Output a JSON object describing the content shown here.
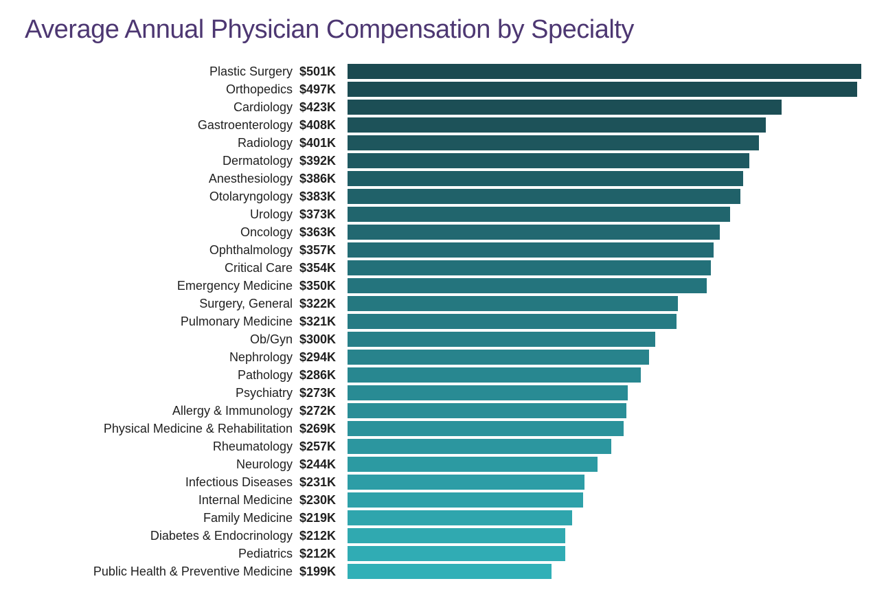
{
  "title": "Average Annual Physician Compensation by Specialty",
  "title_color": "#4d3772",
  "label_color": "#1f1f1f",
  "value_color": "#1f1f1f",
  "background_color": "#ffffff",
  "max_value": 501,
  "label_fontsize": 18,
  "value_fontsize": 18,
  "title_fontsize": 38,
  "rows": [
    {
      "label": "Plastic Surgery",
      "value": 501,
      "display": "$501K",
      "bar_color": "#1b4950"
    },
    {
      "label": "Orthopedics",
      "value": 497,
      "display": "$497K",
      "bar_color": "#1b4b52"
    },
    {
      "label": "Cardiology",
      "value": 423,
      "display": "$423K",
      "bar_color": "#1c4e55"
    },
    {
      "label": "Gastroenterology",
      "value": 408,
      "display": "$408K",
      "bar_color": "#1d5259"
    },
    {
      "label": "Radiology",
      "value": 401,
      "display": "$401K",
      "bar_color": "#1e565d"
    },
    {
      "label": "Dermatology",
      "value": 392,
      "display": "$392K",
      "bar_color": "#1f5961"
    },
    {
      "label": "Anesthesiology",
      "value": 386,
      "display": "$386K",
      "bar_color": "#1f5d65"
    },
    {
      "label": "Otolaryngology",
      "value": 383,
      "display": "$383K",
      "bar_color": "#206169"
    },
    {
      "label": "Urology",
      "value": 373,
      "display": "$373K",
      "bar_color": "#21656d"
    },
    {
      "label": "Oncology",
      "value": 363,
      "display": "$363K",
      "bar_color": "#226871"
    },
    {
      "label": "Ophthalmology",
      "value": 357,
      "display": "$357K",
      "bar_color": "#236c75"
    },
    {
      "label": "Critical Care",
      "value": 354,
      "display": "$354K",
      "bar_color": "#237079"
    },
    {
      "label": "Emergency Medicine",
      "value": 350,
      "display": "$350K",
      "bar_color": "#24747d"
    },
    {
      "label": "Surgery, General",
      "value": 322,
      "display": "$322K",
      "bar_color": "#257880"
    },
    {
      "label": "Pulmonary Medicine",
      "value": 321,
      "display": "$321K",
      "bar_color": "#267b84"
    },
    {
      "label": "Ob/Gyn",
      "value": 300,
      "display": "$300K",
      "bar_color": "#277f88"
    },
    {
      "label": "Nephrology",
      "value": 294,
      "display": "$294K",
      "bar_color": "#28838c"
    },
    {
      "label": "Pathology",
      "value": 286,
      "display": "$286K",
      "bar_color": "#288790"
    },
    {
      "label": "Psychiatry",
      "value": 273,
      "display": "$273K",
      "bar_color": "#298b94"
    },
    {
      "label": "Allergy & Immunology",
      "value": 272,
      "display": "$272K",
      "bar_color": "#2a8e97"
    },
    {
      "label": "Physical Medicine & Rehabilitation",
      "value": 269,
      "display": "$269K",
      "bar_color": "#2b929b"
    },
    {
      "label": "Rheumatology",
      "value": 257,
      "display": "$257K",
      "bar_color": "#2c969f"
    },
    {
      "label": "Neurology",
      "value": 244,
      "display": "$244K",
      "bar_color": "#2c9aa2"
    },
    {
      "label": "Infectious Diseases",
      "value": 231,
      "display": "$231K",
      "bar_color": "#2d9da6"
    },
    {
      "label": "Internal Medicine",
      "value": 230,
      "display": "$230K",
      "bar_color": "#2ea1a9"
    },
    {
      "label": "Family Medicine",
      "value": 219,
      "display": "$219K",
      "bar_color": "#2fa5ad"
    },
    {
      "label": "Diabetes & Endocrinology",
      "value": 212,
      "display": "$212K",
      "bar_color": "#30a9b0"
    },
    {
      "label": "Pediatrics",
      "value": 212,
      "display": "$212K",
      "bar_color": "#30acb4"
    },
    {
      "label": "Public Health & Preventive Medicine",
      "value": 199,
      "display": "$199K",
      "bar_color": "#31b0b7"
    }
  ]
}
